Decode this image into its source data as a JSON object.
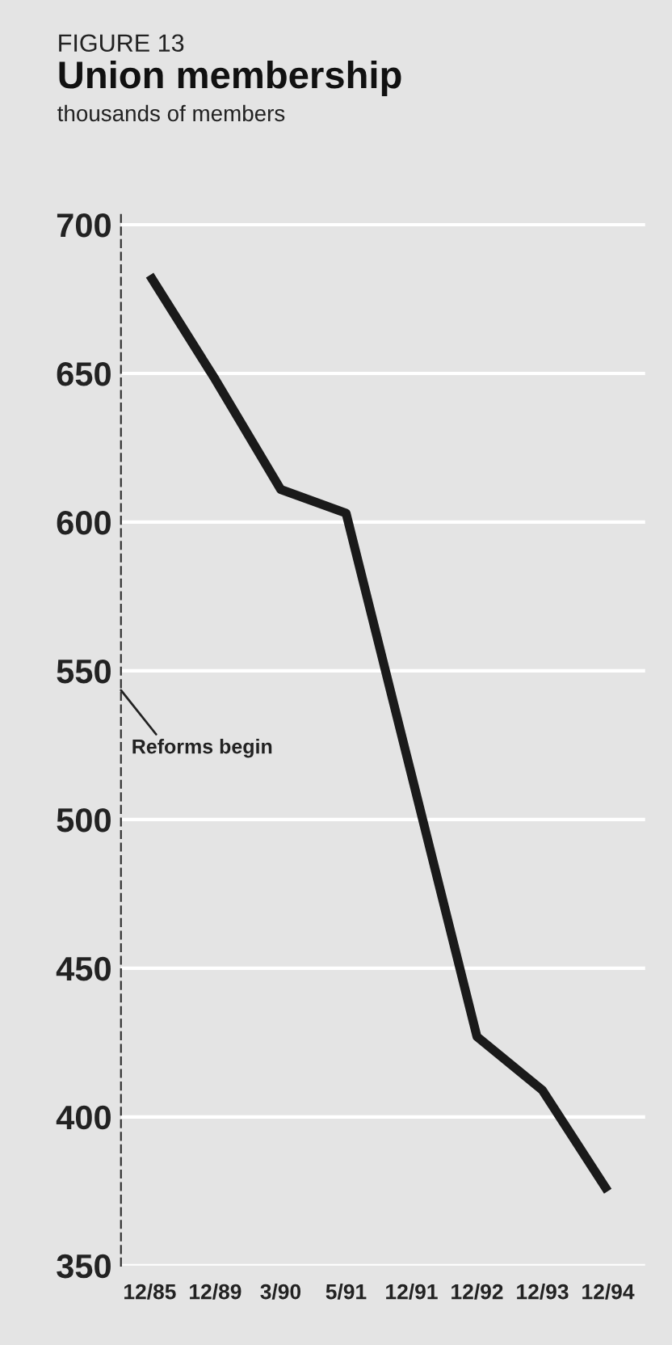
{
  "chart_data": {
    "type": "line",
    "title": "Union membership",
    "ylabel": "thousands of members",
    "annotations": [
      "FIGURE 13",
      "Reforms begin"
    ],
    "categories": [
      "12/85",
      "12/89",
      "3/90",
      "5/91",
      "12/91",
      "12/92",
      "12/93",
      "12/94"
    ],
    "series": [
      {
        "color": "#1a1a1a",
        "values": [
          683,
          648,
          611,
          603,
          515,
          427,
          409,
          375
        ]
      }
    ],
    "ylim": [
      350,
      705
    ],
    "yticks": [
      350,
      400,
      450,
      500,
      550,
      600,
      650,
      700
    ],
    "grid": "y",
    "marker": "none",
    "line_style": "solid",
    "legend": false
  }
}
